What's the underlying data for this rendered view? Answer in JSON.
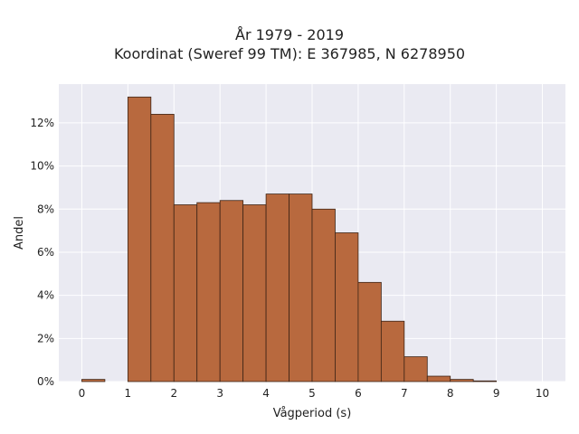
{
  "chart_data": {
    "type": "bar",
    "title_lines": [
      "År 1979 - 2019",
      "Koordinat (Sweref 99 TM): E 367985, N 6278950"
    ],
    "xlabel": "Vågperiod (s)",
    "ylabel": "Andel",
    "bin_width": 0.5,
    "bins": [
      {
        "x0": 0.0,
        "value": 0.1
      },
      {
        "x0": 1.0,
        "value": 13.2
      },
      {
        "x0": 1.5,
        "value": 12.4
      },
      {
        "x0": 2.0,
        "value": 8.2
      },
      {
        "x0": 2.5,
        "value": 8.3
      },
      {
        "x0": 3.0,
        "value": 8.4
      },
      {
        "x0": 3.5,
        "value": 8.2
      },
      {
        "x0": 4.0,
        "value": 8.7
      },
      {
        "x0": 4.5,
        "value": 8.7
      },
      {
        "x0": 5.0,
        "value": 8.0
      },
      {
        "x0": 5.5,
        "value": 6.9
      },
      {
        "x0": 6.0,
        "value": 4.6
      },
      {
        "x0": 6.5,
        "value": 2.8
      },
      {
        "x0": 7.0,
        "value": 1.15
      },
      {
        "x0": 7.5,
        "value": 0.25
      },
      {
        "x0": 8.0,
        "value": 0.1
      },
      {
        "x0": 8.5,
        "value": 0.03
      }
    ],
    "xlim": [
      -0.5,
      10.5
    ],
    "ylim": [
      0,
      13.8
    ],
    "x_ticks": [
      0,
      1,
      2,
      3,
      4,
      5,
      6,
      7,
      8,
      9,
      10
    ],
    "x_tick_labels": [
      "0",
      "1",
      "2",
      "3",
      "4",
      "5",
      "6",
      "7",
      "8",
      "9",
      "10"
    ],
    "y_ticks": [
      0,
      2,
      4,
      6,
      8,
      10,
      12
    ],
    "y_tick_labels": [
      "0%",
      "2%",
      "4%",
      "6%",
      "8%",
      "10%",
      "12%"
    ],
    "grid": true,
    "colors": {
      "bar_fill": "#b8693e",
      "bar_edge": "#3d2416",
      "plot_bg": "#eaeaf2",
      "grid": "#ffffff"
    }
  }
}
